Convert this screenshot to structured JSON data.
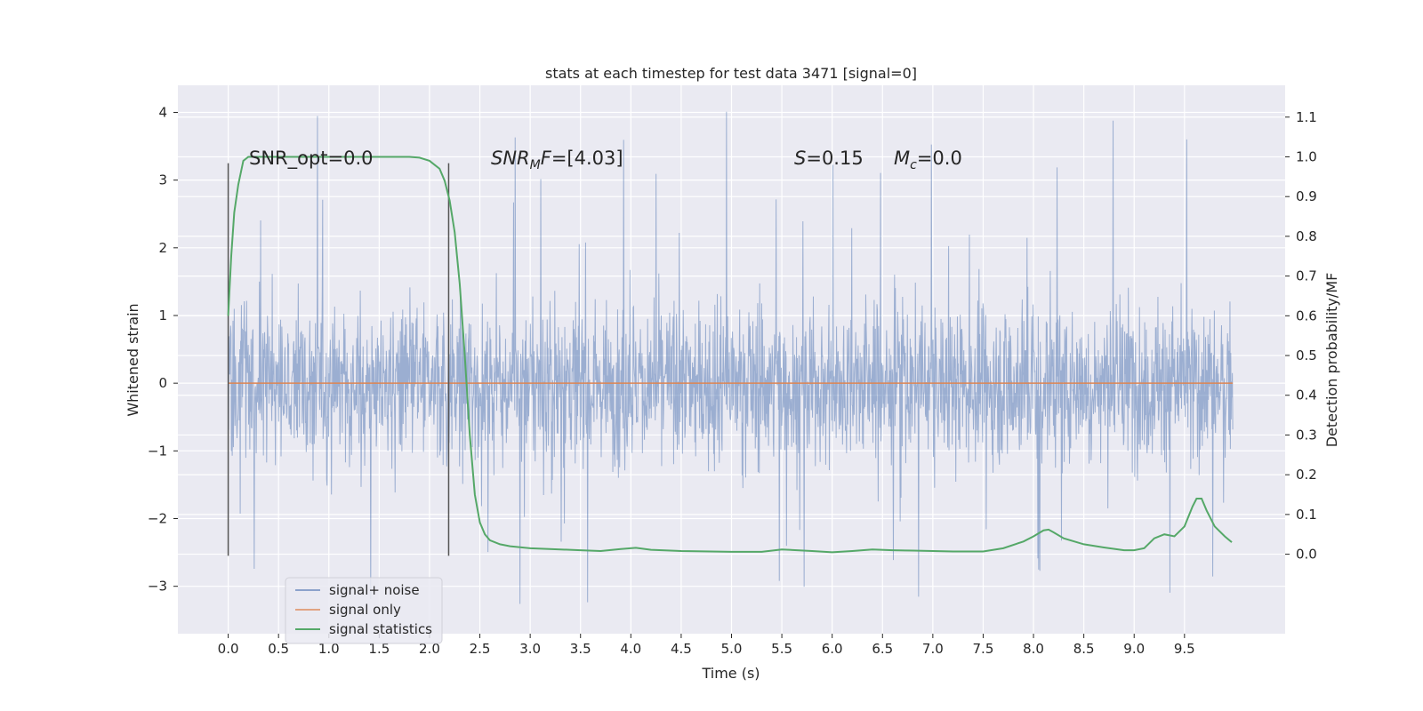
{
  "chart_data": {
    "type": "line",
    "title": "stats at each timestep for test data 3471 [signal=0]",
    "xlabel": "Time (s)",
    "ylabel": "Whitened strain",
    "y2label": "Detection probability/MF",
    "xlim": [
      -0.5,
      10.5
    ],
    "ylim": [
      -3.7,
      4.4
    ],
    "y2lim": [
      -0.2,
      1.18
    ],
    "x_ticks": [
      "0.0",
      "0.5",
      "1.0",
      "1.5",
      "2.0",
      "2.5",
      "3.0",
      "3.5",
      "4.0",
      "4.5",
      "5.0",
      "5.5",
      "6.0",
      "6.5",
      "7.0",
      "7.5",
      "8.0",
      "8.5",
      "9.0",
      "9.5"
    ],
    "y_ticks": [
      "4",
      "3",
      "2",
      "1",
      "0",
      "−1",
      "−2",
      "−3"
    ],
    "y2_ticks": [
      "1.1",
      "1.0",
      "0.9",
      "0.8",
      "0.7",
      "0.6",
      "0.5",
      "0.4",
      "0.3",
      "0.2",
      "0.1",
      "0.0"
    ],
    "grid": true,
    "legend_position": "lower-left",
    "colors": {
      "noise": "#4c72b0",
      "signal": "#dd8452",
      "stats": "#55a868",
      "background": "#eaeaf2",
      "vline": "#555555"
    },
    "vertical_lines": [
      {
        "x": 0.0,
        "y_range": [
          -2.55,
          3.25
        ]
      },
      {
        "x": 2.19,
        "y_range": [
          -2.55,
          3.25
        ]
      }
    ],
    "annotations": {
      "snr_opt": "SNR_opt=0.0",
      "snr_mf_sym": "SNR",
      "snr_mf_sub": "M",
      "snr_mf_sym2": "F",
      "snr_mf_val": "=[4.03]",
      "s_sym": "S",
      "s_val": "=0.15",
      "mc_sym": "M",
      "mc_sub": "c",
      "mc_val": "=0.0"
    },
    "series": [
      {
        "name": "signal+ noise",
        "kind": "noise",
        "x_range": [
          0.0,
          9.98
        ],
        "typical_envelope": [
          -1.5,
          1.5
        ],
        "extremes": [
          -3.35,
          4.05
        ]
      },
      {
        "name": "signal only",
        "kind": "constant",
        "x_range": [
          0.0,
          9.98
        ],
        "value": 0.0
      },
      {
        "name": "signal statistics",
        "kind": "line",
        "axis": "y2",
        "x": [
          0.0,
          0.03,
          0.06,
          0.1,
          0.15,
          0.2,
          0.3,
          0.5,
          1.0,
          1.5,
          1.8,
          1.9,
          2.0,
          2.05,
          2.1,
          2.15,
          2.2,
          2.25,
          2.3,
          2.35,
          2.4,
          2.45,
          2.5,
          2.55,
          2.6,
          2.7,
          2.8,
          3.0,
          3.3,
          3.5,
          3.7,
          3.9,
          4.05,
          4.2,
          4.5,
          5.0,
          5.3,
          5.5,
          5.8,
          6.0,
          6.2,
          6.4,
          6.6,
          6.8,
          7.0,
          7.2,
          7.5,
          7.7,
          7.9,
          8.0,
          8.1,
          8.15,
          8.2,
          8.3,
          8.5,
          8.7,
          8.9,
          9.0,
          9.1,
          9.2,
          9.3,
          9.4,
          9.5,
          9.58,
          9.62,
          9.67,
          9.72,
          9.8,
          9.9,
          9.97
        ],
        "y": [
          0.6,
          0.75,
          0.86,
          0.93,
          0.99,
          1.0,
          1.0,
          1.0,
          1.0,
          1.0,
          1.0,
          0.998,
          0.99,
          0.98,
          0.97,
          0.94,
          0.89,
          0.81,
          0.68,
          0.5,
          0.3,
          0.15,
          0.08,
          0.05,
          0.035,
          0.025,
          0.02,
          0.015,
          0.012,
          0.01,
          0.008,
          0.013,
          0.016,
          0.011,
          0.008,
          0.006,
          0.006,
          0.012,
          0.008,
          0.005,
          0.008,
          0.012,
          0.01,
          0.009,
          0.008,
          0.007,
          0.007,
          0.015,
          0.032,
          0.045,
          0.06,
          0.062,
          0.055,
          0.04,
          0.025,
          0.017,
          0.01,
          0.01,
          0.015,
          0.04,
          0.05,
          0.045,
          0.07,
          0.12,
          0.14,
          0.14,
          0.11,
          0.07,
          0.045,
          0.03
        ]
      }
    ]
  }
}
